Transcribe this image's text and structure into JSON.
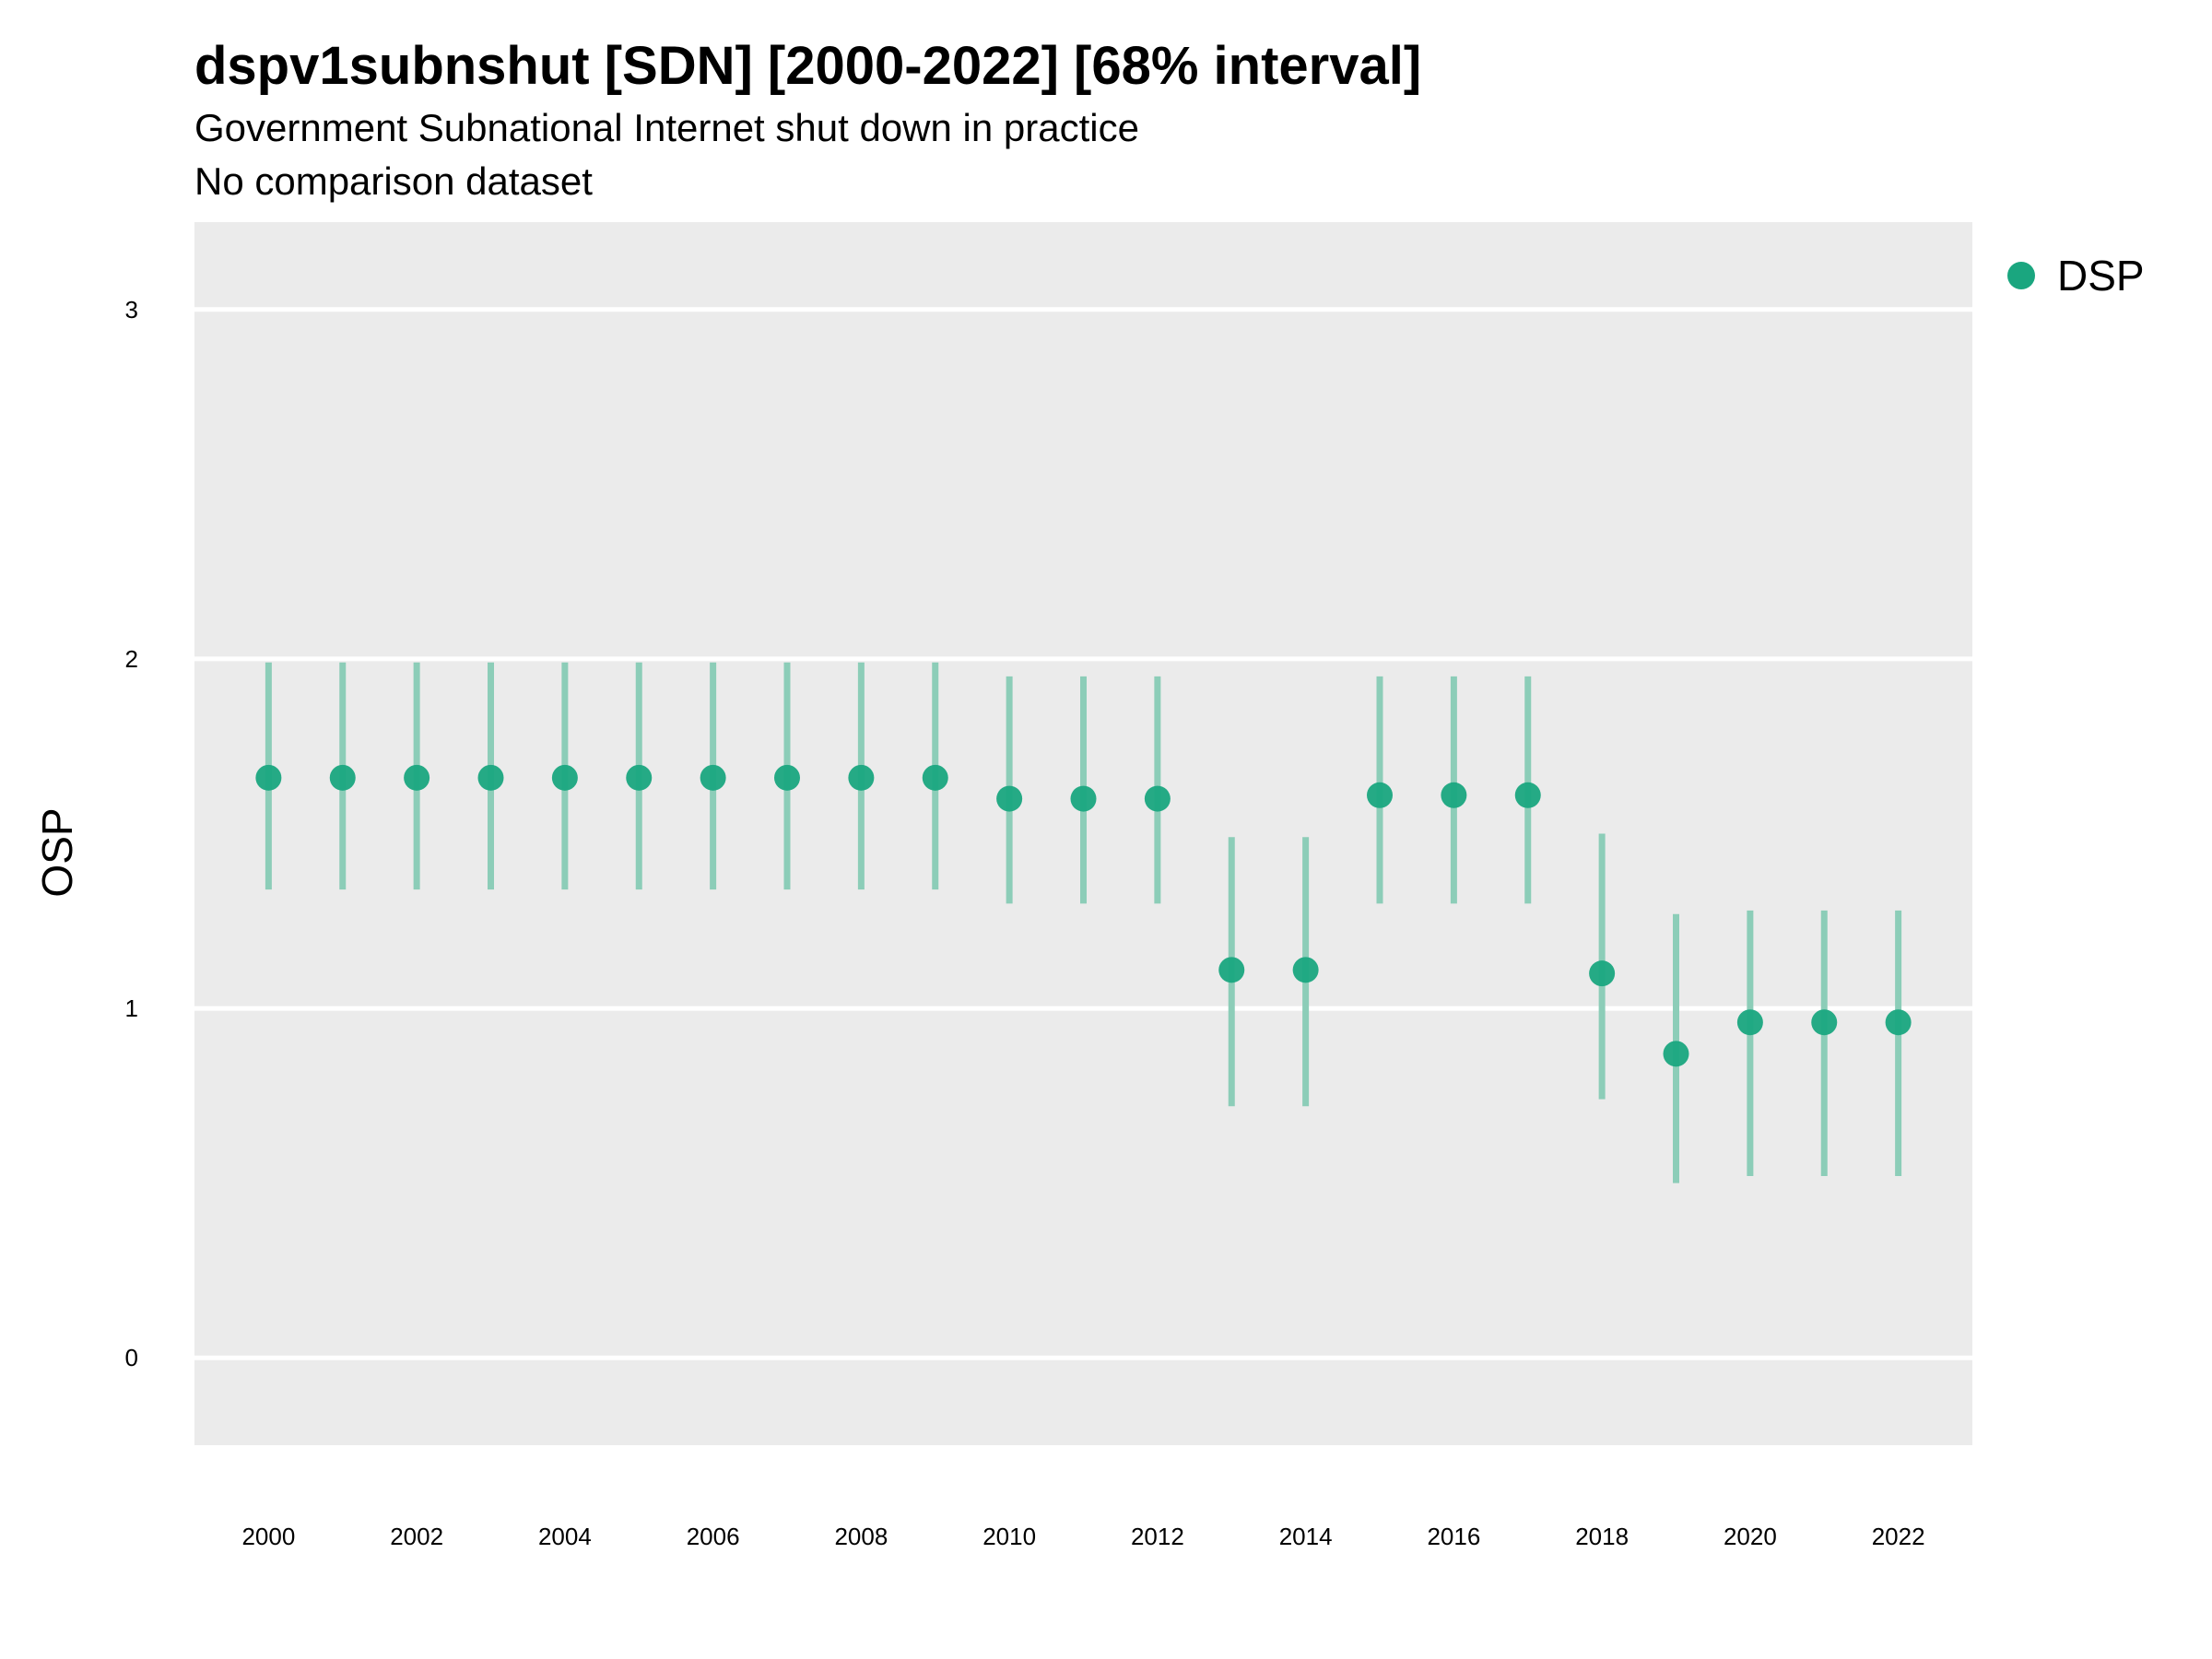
{
  "chart_data": {
    "type": "scatter",
    "title": "dspv1subnshut [SDN] [2000-2022] [68% interval]",
    "subtitle": "Government Subnational Internet shut down in practice",
    "subtitle2": "No comparison dataset",
    "xlabel": "",
    "ylabel": "OSP",
    "ylim": [
      -0.25,
      3.25
    ],
    "yticks": [
      0,
      1,
      2,
      3
    ],
    "xlim": [
      1999,
      2023
    ],
    "xticks": [
      2000,
      2002,
      2004,
      2006,
      2008,
      2010,
      2012,
      2014,
      2016,
      2018,
      2020,
      2022
    ],
    "grid": true,
    "legend_position": "right",
    "series": [
      {
        "name": "DSP",
        "color": "#1aa67f",
        "interval_color": "#8ccdb8",
        "x": [
          2000,
          2001,
          2002,
          2003,
          2004,
          2005,
          2006,
          2007,
          2008,
          2009,
          2010,
          2011,
          2012,
          2013,
          2014,
          2015,
          2016,
          2017,
          2018,
          2019,
          2020,
          2021,
          2022
        ],
        "y": [
          1.66,
          1.66,
          1.66,
          1.66,
          1.66,
          1.66,
          1.66,
          1.66,
          1.66,
          1.66,
          1.6,
          1.6,
          1.6,
          1.11,
          1.11,
          1.61,
          1.61,
          1.61,
          1.1,
          0.87,
          0.96,
          0.96,
          0.96
        ],
        "lower": [
          1.34,
          1.34,
          1.34,
          1.34,
          1.34,
          1.34,
          1.34,
          1.34,
          1.34,
          1.34,
          1.3,
          1.3,
          1.3,
          0.72,
          0.72,
          1.3,
          1.3,
          1.3,
          0.74,
          0.5,
          0.52,
          0.52,
          0.52
        ],
        "upper": [
          1.99,
          1.99,
          1.99,
          1.99,
          1.99,
          1.99,
          1.99,
          1.99,
          1.99,
          1.99,
          1.95,
          1.95,
          1.95,
          1.49,
          1.49,
          1.95,
          1.95,
          1.95,
          1.5,
          1.27,
          1.28,
          1.28,
          1.28
        ]
      }
    ]
  }
}
